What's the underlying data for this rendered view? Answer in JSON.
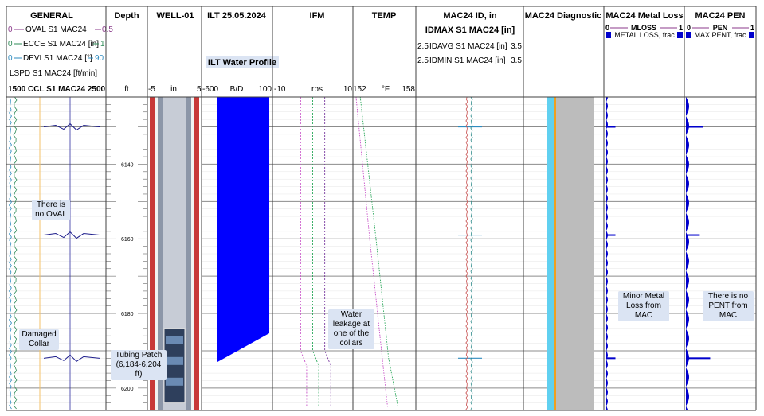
{
  "tracks": {
    "general": {
      "title": "GENERAL",
      "curves": [
        {
          "min": "0",
          "name": "OVAL  S1  MAC24",
          "max": "0.5",
          "color": "#8b3a8b"
        },
        {
          "min": "0",
          "name": "ECCE  S1  MAC24 [in]",
          "max": "1",
          "color": "#2e8b57"
        },
        {
          "min": "0",
          "name": "DEVI  S1  MAC24 [°]",
          "max": "90",
          "color": "#2e8bbf"
        }
      ],
      "lspd": "LSPD  S1  MAC24 [ft/min]",
      "ccl": "1500 CCL  S1  MAC24 2500"
    },
    "depth": {
      "title": "Depth",
      "unit": "ft"
    },
    "well": {
      "title": "WELL-01",
      "scale_min": "-5",
      "unit": "in",
      "scale_max": "5"
    },
    "ilt": {
      "title": "ILT 25.05.2024",
      "label": "ILT Water Profile",
      "scale_min": "-600",
      "unit": "B/D",
      "scale_max": "100"
    },
    "ifm": {
      "title": "IFM",
      "scale_min": "-10",
      "unit": "rps",
      "scale_max": "10"
    },
    "temp": {
      "title": "TEMP",
      "scale_min": "152",
      "unit": "°F",
      "scale_max": "158"
    },
    "mac_id": {
      "title": "MAC24 ID, in",
      "idmax": "IDMAX  S1  MAC24 [in]",
      "idavg": {
        "min": "2.5",
        "name": "IDAVG  S1  MAC24 [in]",
        "max": "3.5"
      },
      "idmin": {
        "min": "2.5",
        "name": "IDMIN  S1  MAC24 [in]",
        "max": "3.5"
      }
    },
    "diag": {
      "title": "MAC24 Diagnostic"
    },
    "loss": {
      "title": "MAC24 Metal Loss",
      "min": "0",
      "name": "MLOSS",
      "max": "1",
      "sub": "METAL LOSS, frac"
    },
    "pen": {
      "title": "MAC24 PEN",
      "min": "0",
      "name": "PEN",
      "max": "1",
      "sub": "MAX PENT, frac"
    }
  },
  "callouts": {
    "no_oval": "There is no OVAL",
    "collar": "Damaged Collar",
    "patch": "Tubing Patch (6,184-6,204 ft)",
    "leak": "Water leakage at one of the collars",
    "loss": "Minor Metal Loss from MAC",
    "pen": "There is no PENT from MAC"
  },
  "chart_data": {
    "type": "line",
    "title": "WELL-01",
    "x_axis": "depth_ft",
    "depth_range": [
      6122,
      6206
    ],
    "depth_labels": [
      6140,
      6160,
      6180,
      6200
    ],
    "collars_ft": [
      6130,
      6159,
      6192
    ],
    "ilt_water_profile": {
      "depth_from": 6122,
      "depth_to": 6193,
      "value_bd": -600
    },
    "tubing_patch": {
      "from_ft": 6184,
      "to_ft": 6204
    },
    "ifm_rps": {
      "depth": [
        6122,
        6150,
        6180,
        6190,
        6194,
        6205
      ],
      "values": [
        [
          -3,
          -3,
          -3,
          -3,
          -1.5,
          -1.5
        ],
        [
          0,
          0,
          0,
          0,
          1.5,
          1.5
        ],
        [
          3,
          3,
          3,
          3,
          4.5,
          4.5
        ]
      ]
    },
    "temp_f": {
      "depth": [
        6122,
        6160,
        6192,
        6205
      ],
      "values": [
        [
          152.3,
          153.6,
          154.8,
          155.3
        ],
        [
          152.7,
          154.2,
          155.4,
          156.3
        ]
      ]
    },
    "mloss_frac_peaks": [
      {
        "depth": 6130,
        "value": 0.12
      },
      {
        "depth": 6159,
        "value": 0.12
      },
      {
        "depth": 6192,
        "value": 0.12
      }
    ],
    "pen_frac_peaks": [
      {
        "depth": 6130,
        "value": 0.25
      },
      {
        "depth": 6159,
        "value": 0.2
      },
      {
        "depth": 6192,
        "value": 0.35
      }
    ]
  }
}
